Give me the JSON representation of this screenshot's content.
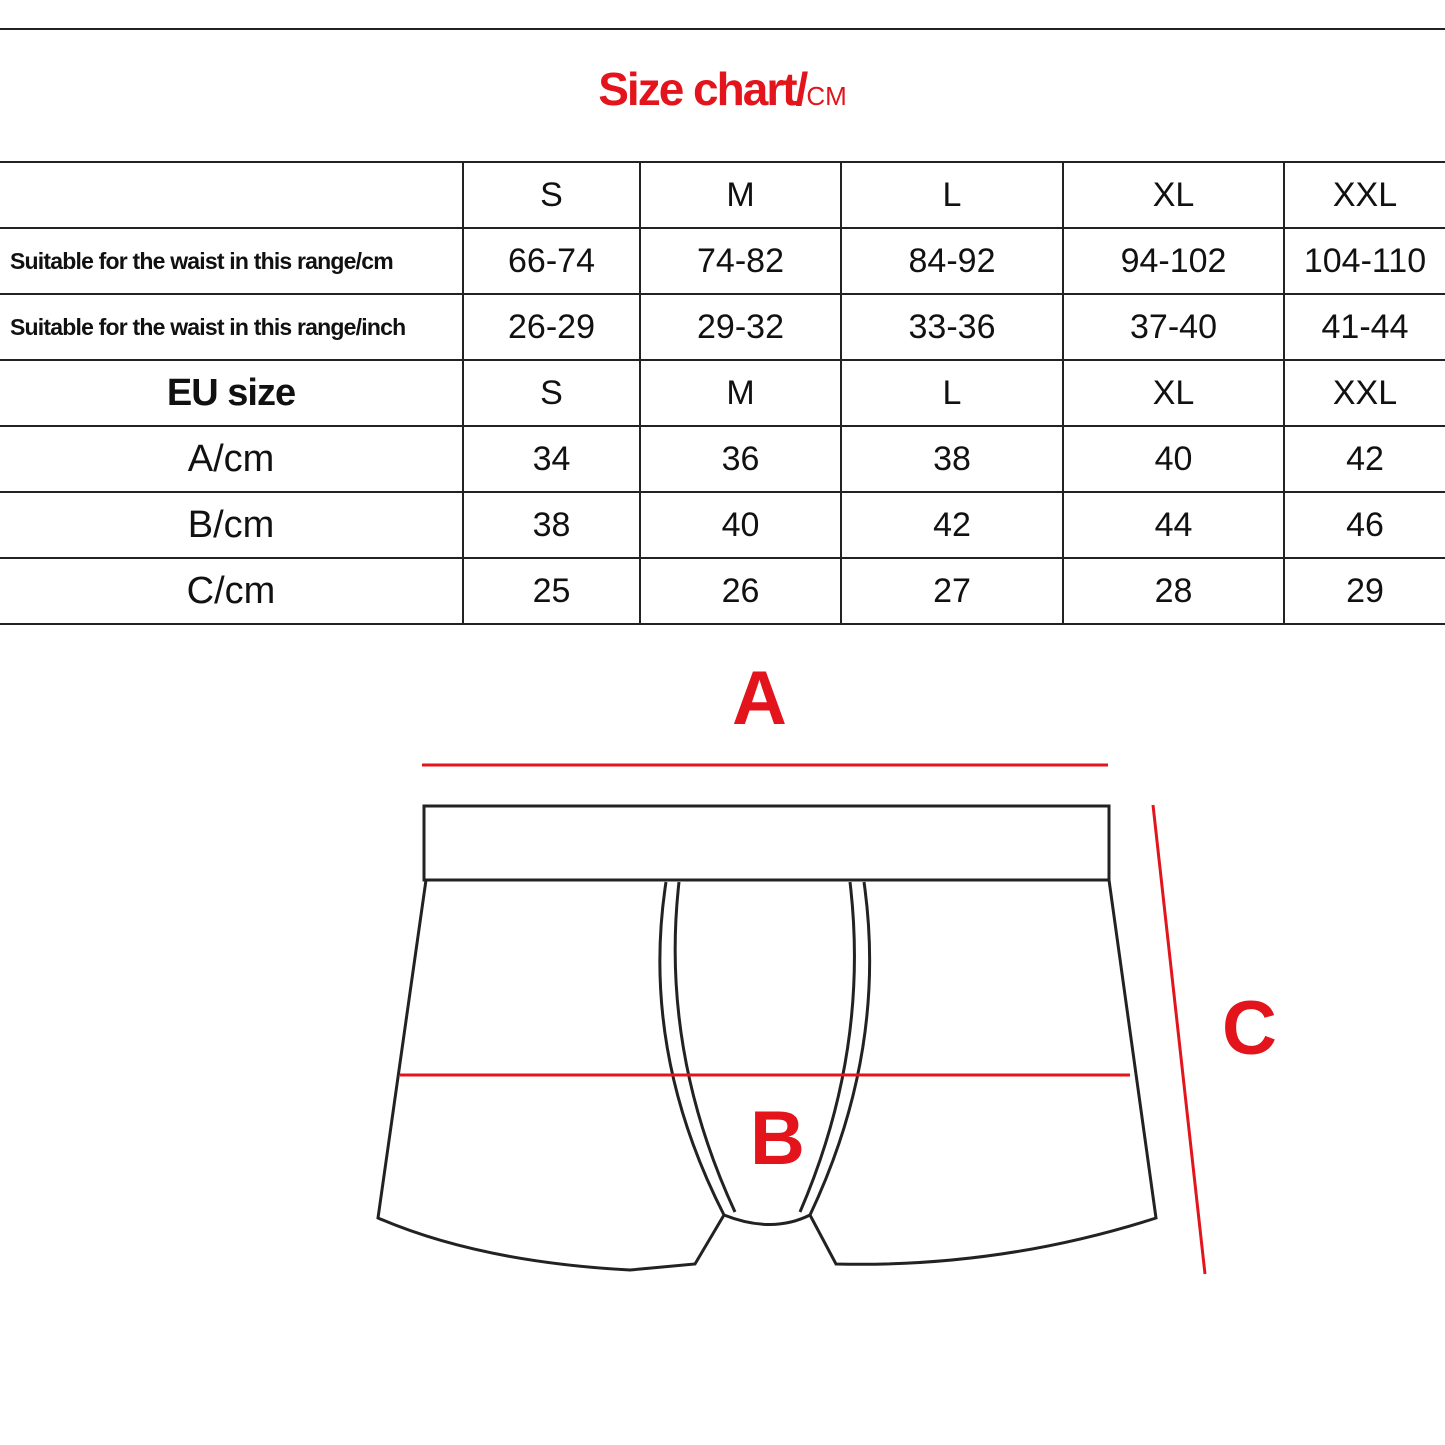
{
  "title": {
    "main": "Size chart/",
    "unit": "CM"
  },
  "table": {
    "header": [
      "",
      "S",
      "M",
      "L",
      "XL",
      "XXL"
    ],
    "rows": [
      [
        "Suitable for the waist in this range/cm",
        "66-74",
        "74-82",
        "84-92",
        "94-102",
        "104-110"
      ],
      [
        "Suitable for the waist in this range/inch",
        "26-29",
        "29-32",
        "33-36",
        "37-40",
        "41-44"
      ],
      [
        "EU size",
        "S",
        "M",
        "L",
        "XL",
        "XXL"
      ],
      [
        "A/cm",
        "34",
        "36",
        "38",
        "40",
        "42"
      ],
      [
        "B/cm",
        "38",
        "40",
        "42",
        "44",
        "46"
      ],
      [
        "C/cm",
        "25",
        "26",
        "27",
        "28",
        "29"
      ]
    ]
  },
  "diagram": {
    "labels": {
      "a": "A",
      "b": "B",
      "c": "C"
    },
    "measure_color": "#e3141b"
  }
}
